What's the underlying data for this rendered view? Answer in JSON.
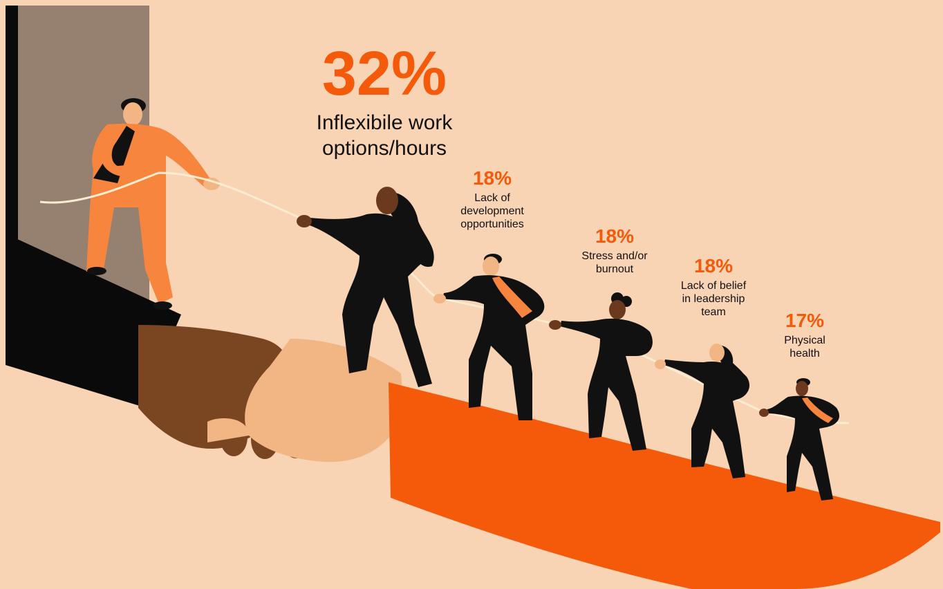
{
  "stats": [
    {
      "percent": "32%",
      "label_lines": [
        "Inflexibile work",
        "options/hours"
      ]
    },
    {
      "percent": "18%",
      "label_lines": [
        "Lack of",
        "development",
        "opportunities"
      ]
    },
    {
      "percent": "18%",
      "label_lines": [
        "Stress and/or",
        "burnout"
      ]
    },
    {
      "percent": "18%",
      "label_lines": [
        "Lack of belief",
        "in leadership",
        "team"
      ]
    },
    {
      "percent": "17%",
      "label_lines": [
        "Physical",
        "health"
      ]
    }
  ],
  "colors": {
    "background": "#f8d3b4",
    "accent": "#f55a0a",
    "text": "#111111",
    "door": "#968070"
  }
}
